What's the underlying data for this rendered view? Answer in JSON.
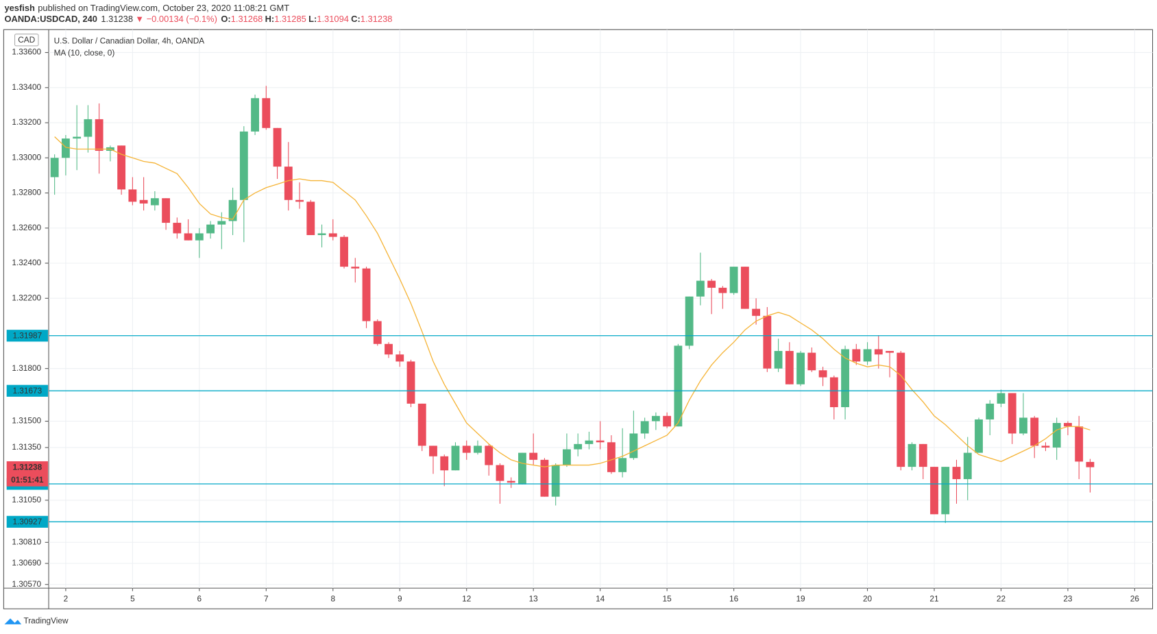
{
  "chart_data": {
    "type": "candlestick",
    "header": {
      "publisher": "yesfish",
      "published": "published on TradingView.com, October 23, 2020 11:08:21 GMT",
      "symbol": "OANDA:USDCAD, 240",
      "change": "▼ −0.00134 (−0.1%)",
      "o": "O:",
      "h": "H:",
      "l": "L:",
      "c": "C:"
    },
    "name": "U.S. Dollar / Canadian Dollar, 4h, OANDA",
    "currency": "CAD",
    "countdown": "01:51:41",
    "brand": "TradingView",
    "up_color": "#53b987",
    "down_color": "#eb4d5c",
    "grid": true,
    "categories": [
      null,
      "2",
      null,
      null,
      null,
      null,
      null,
      "5",
      null,
      null,
      null,
      null,
      null,
      "6",
      null,
      null,
      null,
      null,
      null,
      "7",
      null,
      null,
      null,
      null,
      null,
      "8",
      null,
      null,
      null,
      null,
      null,
      "9",
      null,
      null,
      null,
      null,
      null,
      "12",
      null,
      null,
      null,
      null,
      null,
      "13",
      null,
      null,
      null,
      null,
      null,
      "14",
      null,
      null,
      null,
      null,
      null,
      "15",
      null,
      null,
      null,
      null,
      null,
      "16",
      null,
      null,
      null,
      null,
      null,
      "19",
      null,
      null,
      null,
      null,
      null,
      "20",
      null,
      null,
      null,
      null,
      null,
      "21",
      null,
      null,
      null,
      null,
      null,
      "22",
      null,
      null,
      null,
      null,
      null,
      "23",
      null,
      null,
      null,
      null,
      null,
      "26",
      null
    ],
    "open": [
      1.3289,
      1.33,
      1.3311,
      1.3312,
      1.3322,
      1.3304,
      1.3307,
      1.3282,
      1.3276,
      1.3273,
      1.3277,
      1.3263,
      1.3257,
      1.3253,
      1.3257,
      1.3262,
      1.3264,
      1.3276,
      1.3315,
      1.3334,
      1.3317,
      1.3295,
      1.3276,
      1.3275,
      1.3256,
      1.3257,
      1.3255,
      1.3238,
      1.3237,
      1.3207,
      1.3194,
      1.3188,
      1.3184,
      1.316,
      1.3136,
      1.313,
      1.3122,
      1.3136,
      1.3132,
      1.3136,
      1.3125,
      1.3116,
      1.3114,
      1.3132,
      1.3128,
      1.3107,
      1.3125,
      1.3134,
      1.3137,
      1.3139,
      1.3138,
      1.3121,
      1.3129,
      1.3143,
      1.315,
      1.3153,
      1.3147,
      1.3193,
      1.3221,
      1.323,
      1.3226,
      1.3223,
      1.3238,
      1.3214,
      1.321,
      1.318,
      1.319,
      1.3171,
      1.3189,
      1.3179,
      1.3175,
      1.3158,
      1.3191,
      1.3184,
      1.3191,
      1.319,
      1.3189,
      1.3124,
      1.3137,
      1.3124,
      1.3097,
      1.3124,
      1.3117,
      1.3132,
      1.3151,
      1.316,
      1.3166,
      1.3143,
      1.3152,
      1.3136,
      1.3135,
      1.3149,
      1.3147,
      1.31268,
      null,
      null,
      null,
      null,
      null
    ],
    "high": [
      1.3302,
      1.3313,
      1.333,
      1.333,
      1.3331,
      1.3307,
      1.3307,
      1.3289,
      1.3289,
      1.3281,
      1.3277,
      1.3266,
      1.3265,
      1.326,
      1.3264,
      1.3269,
      1.3283,
      1.3318,
      1.3336,
      1.3341,
      1.3317,
      1.3309,
      1.3286,
      1.3276,
      1.3262,
      1.3265,
      1.3256,
      1.3243,
      1.3238,
      1.3208,
      1.3195,
      1.319,
      1.3185,
      1.316,
      1.3136,
      1.3131,
      1.3138,
      1.3139,
      1.3139,
      1.3137,
      1.3126,
      1.3118,
      1.3132,
      1.3143,
      1.3129,
      1.3126,
      1.3143,
      1.3143,
      1.3144,
      1.315,
      1.3142,
      1.3146,
      1.3156,
      1.3152,
      1.3155,
      1.3155,
      1.3194,
      1.3221,
      1.3246,
      1.3231,
      1.3227,
      1.3238,
      1.3238,
      1.322,
      1.3215,
      1.3197,
      1.3195,
      1.319,
      1.3192,
      1.3181,
      1.3176,
      1.3193,
      1.3194,
      1.3195,
      1.3199,
      1.319,
      1.319,
      1.3138,
      1.3137,
      1.3124,
      1.3124,
      1.3128,
      1.3141,
      1.3152,
      1.3162,
      1.3168,
      1.3166,
      1.3166,
      1.3153,
      1.3138,
      1.3152,
      1.315,
      1.3153,
      1.31285,
      null,
      null,
      null,
      null,
      null
    ],
    "low": [
      1.3279,
      1.329,
      1.3293,
      1.3303,
      1.3291,
      1.3298,
      1.3279,
      1.3273,
      1.327,
      1.327,
      1.3259,
      1.3254,
      1.3253,
      1.3243,
      1.3254,
      1.3248,
      1.3256,
      1.3252,
      1.3313,
      1.3316,
      1.3288,
      1.327,
      1.3271,
      1.3256,
      1.3249,
      1.3253,
      1.3237,
      1.3229,
      1.3203,
      1.3193,
      1.3186,
      1.3181,
      1.3158,
      1.3133,
      1.312,
      1.3113,
      1.3122,
      1.3128,
      1.3131,
      1.3119,
      1.3103,
      1.3112,
      1.3114,
      1.3125,
      1.3107,
      1.3102,
      1.3124,
      1.313,
      1.3134,
      1.3134,
      1.312,
      1.3118,
      1.3128,
      1.314,
      1.3145,
      1.3146,
      1.3147,
      1.3191,
      1.3216,
      1.3211,
      1.3214,
      1.3222,
      1.3214,
      1.3205,
      1.3178,
      1.3178,
      1.3171,
      1.317,
      1.3178,
      1.317,
      1.3151,
      1.3151,
      1.3182,
      1.3182,
      1.318,
      1.3175,
      1.3122,
      1.3122,
      1.3117,
      1.3097,
      1.3092,
      1.3103,
      1.3105,
      1.3132,
      1.3142,
      1.3158,
      1.3137,
      1.3142,
      1.3129,
      1.3133,
      1.3128,
      1.3142,
      1.3117,
      1.31094,
      null,
      null,
      null,
      null,
      null
    ],
    "close": [
      1.33,
      1.3311,
      1.3312,
      1.3322,
      1.3304,
      1.3306,
      1.3282,
      1.3275,
      1.3274,
      1.3277,
      1.3263,
      1.3257,
      1.3253,
      1.3257,
      1.3262,
      1.3264,
      1.3276,
      1.3315,
      1.3334,
      1.3317,
      1.3295,
      1.3276,
      1.3275,
      1.3256,
      1.3257,
      1.3255,
      1.3238,
      1.3237,
      1.3207,
      1.3194,
      1.3188,
      1.3184,
      1.316,
      1.3136,
      1.313,
      1.3122,
      1.3136,
      1.3132,
      1.3136,
      1.3125,
      1.3116,
      1.3115,
      1.3132,
      1.3128,
      1.3107,
      1.3125,
      1.3134,
      1.3137,
      1.3139,
      1.3138,
      1.3121,
      1.3129,
      1.3143,
      1.315,
      1.3153,
      1.3147,
      1.3193,
      1.3221,
      1.323,
      1.3226,
      1.3223,
      1.3238,
      1.3214,
      1.321,
      1.318,
      1.319,
      1.3171,
      1.3189,
      1.3179,
      1.3175,
      1.3158,
      1.3191,
      1.3184,
      1.3191,
      1.3188,
      1.3189,
      1.3124,
      1.3137,
      1.3124,
      1.3097,
      1.3124,
      1.3117,
      1.3132,
      1.3151,
      1.316,
      1.3166,
      1.3143,
      1.3152,
      1.3136,
      1.3135,
      1.3149,
      1.3147,
      1.3127,
      1.31238,
      null,
      null,
      null,
      null,
      null
    ],
    "series": [
      {
        "name": "MA (10, close, 0)",
        "color": "#f5b335",
        "values": [
          1.3312,
          1.3306,
          1.3305,
          1.3305,
          1.3305,
          1.3305,
          1.3302,
          1.33,
          1.3298,
          1.3297,
          1.3294,
          1.3291,
          1.3283,
          1.3274,
          1.3268,
          1.3266,
          1.3265,
          1.3276,
          1.328,
          1.3283,
          1.3285,
          1.3287,
          1.3288,
          1.3287,
          1.3287,
          1.3286,
          1.3281,
          1.3276,
          1.3267,
          1.3257,
          1.3244,
          1.3231,
          1.3217,
          1.3201,
          1.3184,
          1.3171,
          1.316,
          1.3149,
          1.3143,
          1.3137,
          1.3132,
          1.3128,
          1.3126,
          1.3125,
          1.3124,
          1.3125,
          1.3125,
          1.3125,
          1.3125,
          1.3126,
          1.3128,
          1.313,
          1.3133,
          1.3136,
          1.3139,
          1.3142,
          1.3149,
          1.3162,
          1.3173,
          1.3182,
          1.3189,
          1.3195,
          1.3202,
          1.3207,
          1.321,
          1.3212,
          1.321,
          1.3206,
          1.3202,
          1.3197,
          1.3191,
          1.3186,
          1.3183,
          1.3181,
          1.3182,
          1.3181,
          1.3176,
          1.3168,
          1.3161,
          1.3153,
          1.3148,
          1.3142,
          1.3136,
          1.3131,
          1.3129,
          1.3127,
          1.313,
          1.3133,
          1.3136,
          1.314,
          1.3145,
          1.3147,
          1.3147,
          1.3145,
          null,
          null,
          null,
          null,
          null
        ]
      }
    ],
    "levels": [
      1.31987,
      1.31673,
      1.31143,
      1.30927
    ],
    "level_color": "#00a8c6",
    "ylim": [
      1.30549,
      1.33722
    ],
    "yticks": [
      {
        "value": 1.336,
        "label": "1.33600"
      },
      {
        "value": 1.334,
        "label": "1.33400"
      },
      {
        "value": 1.332,
        "label": "1.33200"
      },
      {
        "value": 1.33,
        "label": "1.33000"
      },
      {
        "value": 1.328,
        "label": "1.32800"
      },
      {
        "value": 1.326,
        "label": "1.32600"
      },
      {
        "value": 1.324,
        "label": "1.32400"
      },
      {
        "value": 1.322,
        "label": "1.32200"
      },
      {
        "value": 1.318,
        "label": "1.31800"
      },
      {
        "value": 1.315,
        "label": "1.31500"
      },
      {
        "value": 1.3135,
        "label": "1.31350"
      },
      {
        "value": 1.3105,
        "label": "1.31050"
      },
      {
        "value": 1.3081,
        "label": "1.30810"
      },
      {
        "value": 1.3069,
        "label": "1.30690"
      },
      {
        "value": 1.3057,
        "label": "1.30570"
      }
    ]
  }
}
